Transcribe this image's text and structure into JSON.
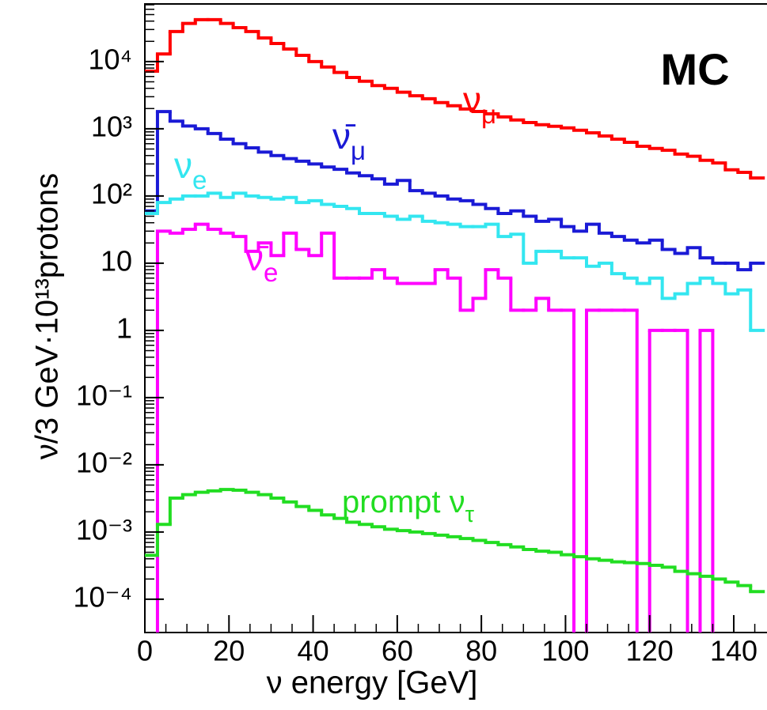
{
  "chart_data": {
    "type": "histogram",
    "title": "MC",
    "x_label": "ν energy [GeV]",
    "y_label": "ν/3 GeV·10¹³protons",
    "log_y": true,
    "bins": [
      0,
      3,
      6,
      9,
      12,
      15,
      18,
      21,
      24,
      27,
      30,
      33,
      36,
      39,
      42,
      45,
      48,
      51,
      54,
      57,
      60,
      63,
      66,
      69,
      72,
      75,
      78,
      81,
      84,
      87,
      90,
      93,
      96,
      99,
      102,
      105,
      108,
      111,
      114,
      117,
      120,
      123,
      126,
      129,
      132,
      135,
      138,
      141,
      144,
      147
    ],
    "xlim": [
      0,
      148
    ],
    "xticks": [
      0,
      20,
      40,
      60,
      80,
      100,
      120,
      140
    ],
    "ylim": [
      3.2e-05,
      72000
    ],
    "yticks": [
      {
        "value": 10000,
        "label": "10⁴"
      },
      {
        "value": 1000,
        "label": "10³"
      },
      {
        "value": 100,
        "label": "10²"
      },
      10,
      1,
      {
        "value": 0.1,
        "label": "10⁻¹"
      },
      {
        "value": 0.01,
        "label": "10⁻²"
      },
      {
        "value": 0.001,
        "label": "10⁻³"
      },
      {
        "value": 0.0001,
        "label": "10⁻⁴"
      }
    ],
    "series": [
      {
        "name": "νμ",
        "color": "#ff0000",
        "values": [
          7200,
          13000,
          28000,
          37000,
          42000,
          42000,
          37000,
          32000,
          28000,
          22500,
          18600,
          15400,
          12400,
          10000,
          8300,
          6900,
          5800,
          5100,
          4400,
          4000,
          3500,
          3100,
          2800,
          2450,
          2200,
          1970,
          1810,
          1670,
          1500,
          1350,
          1240,
          1150,
          1090,
          1030,
          950,
          870,
          780,
          700,
          630,
          550,
          510,
          480,
          420,
          390,
          340,
          310,
          245,
          225,
          185
        ]
      },
      {
        "name": "ν̄μ",
        "color": "#1a1ad6",
        "values": [
          60,
          1800,
          1300,
          1100,
          1000,
          850,
          700,
          600,
          520,
          450,
          400,
          360,
          330,
          300,
          270,
          250,
          220,
          200,
          180,
          150,
          170,
          120,
          110,
          100,
          90,
          85,
          75,
          65,
          55,
          60,
          50,
          42,
          45,
          35,
          30,
          38,
          28,
          25,
          22,
          20,
          22,
          16,
          14,
          17,
          12,
          10,
          10,
          8,
          10
        ]
      },
      {
        "name": "νe",
        "color": "#33e6f0",
        "values": [
          55,
          80,
          90,
          100,
          100,
          110,
          95,
          110,
          100,
          95,
          90,
          95,
          80,
          85,
          75,
          70,
          65,
          55,
          55,
          50,
          45,
          50,
          42,
          40,
          38,
          35,
          35,
          38,
          25,
          27,
          10,
          15,
          15,
          12,
          12,
          9,
          10,
          7,
          6,
          5,
          6,
          3,
          3.5,
          5,
          6,
          5,
          3.5,
          4,
          1
        ]
      },
      {
        "name": "ν̄e",
        "color": "#ff00ff",
        "values": [
          0,
          30,
          28,
          32,
          38,
          32,
          28,
          25,
          15,
          20,
          13,
          28,
          16,
          13,
          28,
          6,
          6,
          6,
          8,
          6,
          5,
          5,
          5,
          8,
          6,
          2,
          3,
          8,
          6,
          2,
          2,
          3,
          2,
          2,
          0,
          2,
          2,
          2,
          2,
          0,
          1,
          1,
          1,
          0,
          1,
          0,
          0,
          0,
          0
        ]
      },
      {
        "name": "prompt ντ",
        "color": "#22dd22",
        "values": [
          0.00045,
          0.0013,
          0.0032,
          0.0036,
          0.0039,
          0.0041,
          0.0043,
          0.0042,
          0.0039,
          0.0036,
          0.0032,
          0.0028,
          0.0024,
          0.0021,
          0.0018,
          0.0016,
          0.0014,
          0.0013,
          0.0012,
          0.0011,
          0.00105,
          0.001,
          0.00095,
          0.0009,
          0.00085,
          0.0008,
          0.00075,
          0.0007,
          0.00065,
          0.0006,
          0.00055,
          0.00052,
          0.0005,
          0.00046,
          0.00043,
          0.0004,
          0.00038,
          0.00036,
          0.00035,
          0.00034,
          0.00032,
          0.0003,
          0.00026,
          0.00024,
          0.00022,
          0.0002,
          0.00018,
          0.00016,
          0.00013
        ]
      }
    ]
  }
}
